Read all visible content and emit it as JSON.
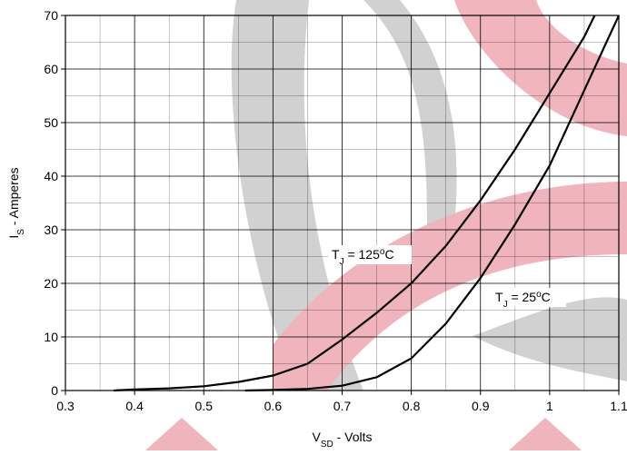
{
  "chart_data": {
    "type": "line",
    "x_label": {
      "base": "V",
      "sub": "SD",
      "rest": " - Volts"
    },
    "y_label": {
      "base": "I",
      "sub": "S",
      "rest": " - Amperes"
    },
    "xlim": [
      0.3,
      1.1
    ],
    "xticks": [
      0.3,
      0.4,
      0.5,
      0.6,
      0.7,
      0.8,
      0.9,
      1,
      1.1
    ],
    "ylim": [
      0,
      70
    ],
    "yticks": [
      0,
      10,
      20,
      30,
      40,
      50,
      60,
      70
    ],
    "grid": true,
    "minor_grid": true,
    "series": [
      {
        "color": "#000000",
        "x": [
          0.37,
          0.4,
          0.45,
          0.5,
          0.55,
          0.6,
          0.65,
          0.7,
          0.75,
          0.8,
          0.85,
          0.9,
          0.95,
          1.0,
          1.05,
          1.065
        ],
        "values": [
          0,
          0.2,
          0.4,
          0.8,
          1.6,
          2.8,
          5,
          9.5,
          14.5,
          20,
          27,
          35.5,
          45,
          55.5,
          66,
          70
        ]
      },
      {
        "color": "#000000",
        "x": [
          0.56,
          0.6,
          0.65,
          0.7,
          0.75,
          0.8,
          0.85,
          0.9,
          0.95,
          1.0,
          1.05,
          1.1
        ],
        "values": [
          0,
          0.1,
          0.3,
          0.9,
          2.5,
          6,
          12.5,
          21,
          31,
          42,
          56,
          70
        ]
      }
    ],
    "annotations": [
      {
        "base": "T",
        "sub": "J",
        "mid": " = 125",
        "sup": "o",
        "unit": "C"
      },
      {
        "base": "T",
        "sub": "J",
        "mid": " = 25",
        "sup": "o",
        "unit": "C"
      }
    ]
  }
}
